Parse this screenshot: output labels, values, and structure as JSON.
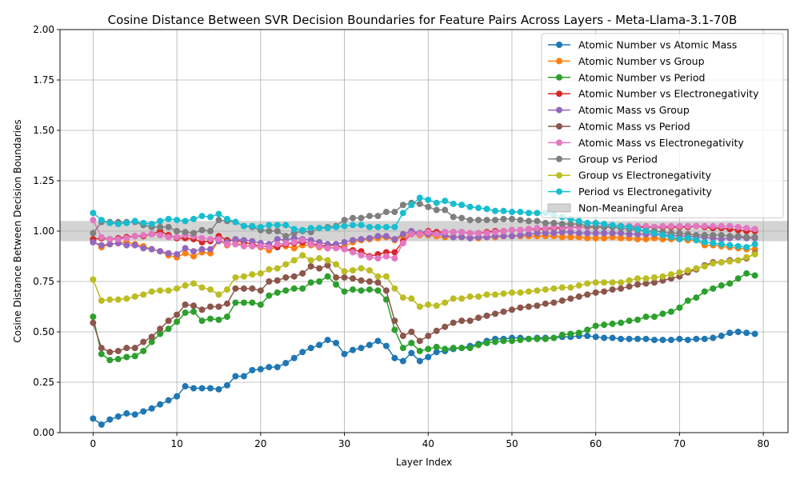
{
  "chart_data": {
    "type": "line",
    "title": "Cosine Distance Between SVR Decision Boundaries for Feature Pairs Across Layers - Meta-Llama-3.1-70B",
    "xlabel": "Layer Index",
    "ylabel": "Cosine Distance Between Decision Boundaries",
    "xlim": [
      -3.95,
      82.95
    ],
    "ylim": [
      0,
      2.0
    ],
    "xticks": [
      0,
      10,
      20,
      30,
      40,
      50,
      60,
      70,
      80
    ],
    "yticks": [
      0.0,
      0.25,
      0.5,
      0.75,
      1.0,
      1.25,
      1.5,
      1.75,
      2.0
    ],
    "ytick_labels": [
      "0.00",
      "0.25",
      "0.50",
      "0.75",
      "1.00",
      "1.25",
      "1.50",
      "1.75",
      "2.00"
    ],
    "grid": true,
    "legend_position": "upper right",
    "band": {
      "name": "Non-Meaningful Area",
      "y0": 0.95,
      "y1": 1.05,
      "color": "#b0b0b0"
    },
    "x_start": 0,
    "series": [
      {
        "name": "Atomic Number vs Atomic Mass",
        "color": "#1f77b4",
        "values": [
          0.07,
          0.04,
          0.065,
          0.08,
          0.095,
          0.09,
          0.105,
          0.12,
          0.14,
          0.16,
          0.18,
          0.23,
          0.22,
          0.22,
          0.22,
          0.215,
          0.235,
          0.28,
          0.28,
          0.31,
          0.315,
          0.325,
          0.325,
          0.345,
          0.37,
          0.4,
          0.42,
          0.435,
          0.46,
          0.445,
          0.39,
          0.41,
          0.42,
          0.435,
          0.455,
          0.43,
          0.37,
          0.355,
          0.395,
          0.355,
          0.375,
          0.4,
          0.405,
          0.415,
          0.42,
          0.43,
          0.44,
          0.455,
          0.465,
          0.465,
          0.47,
          0.47,
          0.465,
          0.47,
          0.47,
          0.47,
          0.475,
          0.475,
          0.48,
          0.48,
          0.475,
          0.47,
          0.47,
          0.465,
          0.465,
          0.465,
          0.465,
          0.46,
          0.46,
          0.46,
          0.465,
          0.46,
          0.465,
          0.465,
          0.47,
          0.48,
          0.495,
          0.5,
          0.495,
          0.49
        ]
      },
      {
        "name": "Atomic Number vs Group",
        "color": "#ff7f0e",
        "values": [
          0.95,
          0.92,
          0.935,
          0.94,
          0.945,
          0.935,
          0.925,
          0.91,
          0.9,
          0.88,
          0.87,
          0.89,
          0.875,
          0.895,
          0.89,
          0.955,
          0.93,
          0.94,
          0.93,
          0.925,
          0.92,
          0.905,
          0.925,
          0.925,
          0.915,
          0.93,
          0.93,
          0.92,
          0.915,
          0.92,
          0.925,
          0.945,
          0.955,
          0.96,
          0.965,
          0.97,
          0.955,
          0.975,
          0.985,
          0.98,
          0.98,
          0.975,
          0.97,
          0.97,
          0.97,
          0.965,
          0.965,
          0.97,
          0.97,
          0.975,
          0.975,
          0.975,
          0.975,
          0.975,
          0.975,
          0.975,
          0.97,
          0.97,
          0.97,
          0.965,
          0.965,
          0.965,
          0.97,
          0.965,
          0.965,
          0.96,
          0.96,
          0.965,
          0.96,
          0.96,
          0.96,
          0.955,
          0.955,
          0.93,
          0.93,
          0.925,
          0.92,
          0.915,
          0.91,
          0.91
        ]
      },
      {
        "name": "Atomic Number vs Period",
        "color": "#2ca02c",
        "values": [
          0.575,
          0.39,
          0.36,
          0.365,
          0.375,
          0.38,
          0.405,
          0.45,
          0.49,
          0.515,
          0.55,
          0.595,
          0.6,
          0.555,
          0.565,
          0.56,
          0.575,
          0.645,
          0.645,
          0.645,
          0.635,
          0.68,
          0.695,
          0.705,
          0.715,
          0.715,
          0.745,
          0.75,
          0.775,
          0.735,
          0.7,
          0.71,
          0.705,
          0.71,
          0.705,
          0.66,
          0.51,
          0.42,
          0.445,
          0.405,
          0.415,
          0.425,
          0.415,
          0.42,
          0.42,
          0.42,
          0.435,
          0.445,
          0.45,
          0.455,
          0.455,
          0.46,
          0.465,
          0.465,
          0.465,
          0.47,
          0.485,
          0.49,
          0.495,
          0.51,
          0.53,
          0.535,
          0.54,
          0.545,
          0.555,
          0.56,
          0.575,
          0.575,
          0.59,
          0.6,
          0.62,
          0.655,
          0.67,
          0.7,
          0.715,
          0.73,
          0.74,
          0.765,
          0.79,
          0.78
        ]
      },
      {
        "name": "Atomic Number vs Electronegativity",
        "color": "#d62728",
        "values": [
          0.96,
          0.965,
          0.96,
          0.965,
          0.97,
          0.975,
          0.975,
          0.985,
          1.0,
          0.98,
          0.965,
          0.965,
          0.96,
          0.945,
          0.95,
          0.975,
          0.955,
          0.955,
          0.945,
          0.935,
          0.925,
          0.925,
          0.92,
          0.935,
          0.94,
          0.945,
          0.94,
          0.93,
          0.925,
          0.935,
          0.91,
          0.905,
          0.9,
          0.875,
          0.885,
          0.895,
          0.895,
          0.95,
          0.985,
          0.99,
          1.0,
          0.995,
          0.995,
          0.995,
          0.995,
          0.99,
          0.99,
          0.995,
          1.0,
          1.0,
          1.005,
          1.005,
          1.01,
          1.01,
          1.01,
          1.015,
          1.015,
          1.02,
          1.02,
          1.02,
          1.02,
          1.02,
          1.025,
          1.025,
          1.025,
          1.02,
          1.02,
          1.02,
          1.02,
          1.02,
          1.02,
          1.02,
          1.025,
          1.02,
          1.015,
          1.015,
          1.01,
          1.005,
          1.0,
          1.0
        ]
      },
      {
        "name": "Atomic Mass vs Group",
        "color": "#9467bd",
        "values": [
          0.945,
          0.93,
          0.935,
          0.94,
          0.93,
          0.93,
          0.915,
          0.91,
          0.9,
          0.89,
          0.885,
          0.915,
          0.9,
          0.91,
          0.91,
          0.95,
          0.945,
          0.96,
          0.955,
          0.95,
          0.94,
          0.935,
          0.96,
          0.955,
          0.965,
          0.96,
          0.955,
          0.945,
          0.935,
          0.935,
          0.945,
          0.955,
          0.96,
          0.965,
          0.975,
          0.975,
          0.96,
          0.985,
          1.0,
          0.99,
          0.985,
          0.985,
          0.98,
          0.97,
          0.97,
          0.965,
          0.97,
          0.97,
          0.975,
          0.975,
          0.975,
          0.98,
          0.985,
          0.99,
          0.99,
          0.99,
          0.995,
          0.995,
          0.99,
          0.99,
          0.99,
          0.99,
          0.99,
          0.99,
          0.985,
          0.985,
          0.985,
          0.985,
          0.98,
          0.98,
          0.975,
          0.975,
          0.97,
          0.97,
          0.965,
          0.96,
          0.965,
          0.97,
          0.965,
          0.965
        ]
      },
      {
        "name": "Atomic Mass vs Period",
        "color": "#8c564b",
        "values": [
          0.545,
          0.42,
          0.4,
          0.405,
          0.42,
          0.42,
          0.45,
          0.475,
          0.515,
          0.555,
          0.585,
          0.635,
          0.63,
          0.61,
          0.625,
          0.625,
          0.64,
          0.715,
          0.715,
          0.715,
          0.705,
          0.75,
          0.755,
          0.77,
          0.775,
          0.79,
          0.825,
          0.815,
          0.83,
          0.77,
          0.77,
          0.765,
          0.755,
          0.75,
          0.745,
          0.705,
          0.555,
          0.48,
          0.5,
          0.455,
          0.48,
          0.505,
          0.525,
          0.545,
          0.555,
          0.555,
          0.57,
          0.58,
          0.59,
          0.6,
          0.61,
          0.62,
          0.625,
          0.63,
          0.64,
          0.645,
          0.655,
          0.665,
          0.675,
          0.685,
          0.695,
          0.7,
          0.71,
          0.715,
          0.725,
          0.735,
          0.74,
          0.745,
          0.755,
          0.765,
          0.775,
          0.795,
          0.81,
          0.83,
          0.845,
          0.845,
          0.855,
          0.855,
          0.865,
          0.89
        ]
      },
      {
        "name": "Atomic Mass vs Electronegativity",
        "color": "#e377c2",
        "values": [
          1.055,
          0.97,
          0.96,
          0.96,
          0.965,
          0.975,
          0.98,
          0.985,
          0.98,
          0.97,
          0.97,
          0.98,
          0.975,
          0.965,
          0.96,
          0.96,
          0.935,
          0.935,
          0.925,
          0.925,
          0.925,
          0.92,
          0.935,
          0.94,
          0.945,
          0.955,
          0.935,
          0.925,
          0.915,
          0.915,
          0.91,
          0.895,
          0.88,
          0.87,
          0.865,
          0.875,
          0.865,
          0.94,
          0.985,
          0.985,
          0.995,
          0.985,
          0.995,
          0.995,
          0.995,
          0.99,
          0.99,
          0.99,
          0.995,
          1.0,
          1.005,
          1.005,
          1.01,
          1.015,
          1.015,
          1.02,
          1.02,
          1.02,
          1.02,
          1.02,
          1.025,
          1.025,
          1.025,
          1.025,
          1.025,
          1.025,
          1.025,
          1.02,
          1.025,
          1.025,
          1.025,
          1.025,
          1.025,
          1.025,
          1.025,
          1.025,
          1.025,
          1.02,
          1.015,
          1.01
        ]
      },
      {
        "name": "Group vs Period",
        "color": "#7f7f7f",
        "values": [
          0.99,
          1.045,
          1.045,
          1.045,
          1.045,
          1.045,
          1.03,
          1.02,
          1.02,
          1.02,
          1.0,
          0.995,
          0.99,
          1.005,
          1.0,
          1.055,
          1.05,
          1.045,
          1.025,
          1.02,
          1.005,
          1.0,
          1.0,
          0.975,
          0.99,
          1.0,
          0.995,
          1.015,
          1.02,
          1.025,
          1.055,
          1.065,
          1.065,
          1.075,
          1.075,
          1.095,
          1.095,
          1.13,
          1.14,
          1.135,
          1.12,
          1.105,
          1.105,
          1.07,
          1.065,
          1.055,
          1.055,
          1.055,
          1.055,
          1.06,
          1.06,
          1.055,
          1.05,
          1.05,
          1.04,
          1.04,
          1.035,
          1.035,
          1.035,
          1.025,
          1.02,
          1.02,
          1.02,
          1.015,
          1.01,
          1.005,
          1.0,
          1.0,
          0.995,
          0.99,
          0.99,
          0.985,
          0.98,
          0.98,
          0.98,
          0.98,
          0.975,
          0.975,
          0.97,
          0.97
        ]
      },
      {
        "name": "Group vs Electronegativity",
        "color": "#bcbd22",
        "values": [
          0.76,
          0.655,
          0.66,
          0.66,
          0.665,
          0.675,
          0.685,
          0.7,
          0.705,
          0.705,
          0.715,
          0.73,
          0.74,
          0.72,
          0.71,
          0.685,
          0.71,
          0.77,
          0.775,
          0.785,
          0.79,
          0.81,
          0.815,
          0.835,
          0.855,
          0.88,
          0.855,
          0.865,
          0.855,
          0.835,
          0.8,
          0.805,
          0.815,
          0.805,
          0.775,
          0.775,
          0.715,
          0.67,
          0.665,
          0.625,
          0.635,
          0.63,
          0.645,
          0.665,
          0.665,
          0.675,
          0.675,
          0.685,
          0.685,
          0.69,
          0.695,
          0.695,
          0.7,
          0.705,
          0.71,
          0.715,
          0.72,
          0.72,
          0.73,
          0.74,
          0.745,
          0.745,
          0.745,
          0.745,
          0.755,
          0.765,
          0.765,
          0.77,
          0.775,
          0.785,
          0.795,
          0.805,
          0.815,
          0.825,
          0.84,
          0.845,
          0.85,
          0.855,
          0.87,
          0.885
        ]
      },
      {
        "name": "Period vs Electronegativity",
        "color": "#17becf",
        "values": [
          1.09,
          1.055,
          1.04,
          1.035,
          1.04,
          1.05,
          1.04,
          1.035,
          1.05,
          1.06,
          1.055,
          1.05,
          1.06,
          1.075,
          1.07,
          1.085,
          1.06,
          1.045,
          1.025,
          1.025,
          1.02,
          1.03,
          1.03,
          1.03,
          1.01,
          1.005,
          1.015,
          1.015,
          1.015,
          1.02,
          1.025,
          1.03,
          1.03,
          1.02,
          1.02,
          1.02,
          1.02,
          1.09,
          1.13,
          1.165,
          1.155,
          1.14,
          1.15,
          1.135,
          1.13,
          1.12,
          1.115,
          1.11,
          1.1,
          1.1,
          1.095,
          1.095,
          1.09,
          1.09,
          1.09,
          1.08,
          1.07,
          1.06,
          1.05,
          1.04,
          1.04,
          1.035,
          1.03,
          1.025,
          1.02,
          1.01,
          1.0,
          0.99,
          0.98,
          0.97,
          0.96,
          0.965,
          0.955,
          0.945,
          0.94,
          0.935,
          0.93,
          0.925,
          0.92,
          0.935
        ]
      }
    ]
  }
}
